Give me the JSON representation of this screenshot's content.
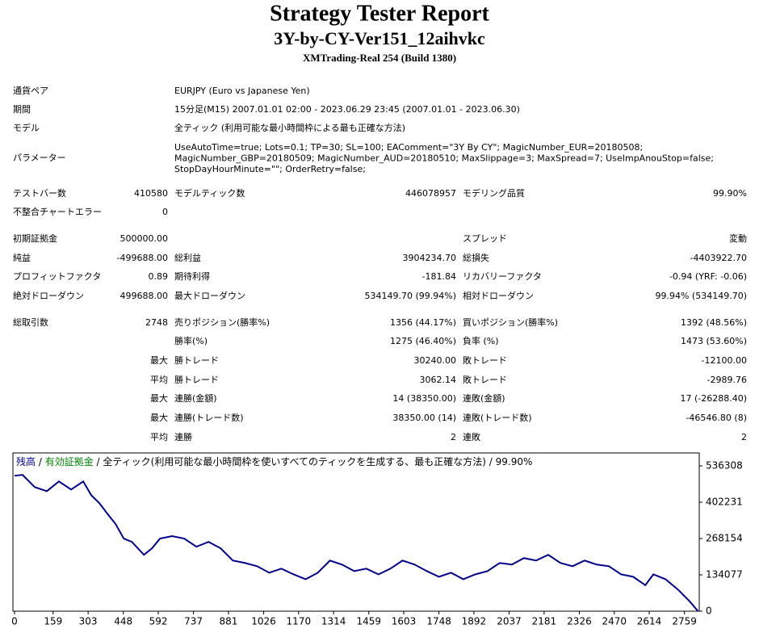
{
  "header": {
    "title": "Strategy Tester Report",
    "subtitle": "3Y-by-CY-Ver151_12aihvkc",
    "server": "XMTrading-Real 254 (Build 1380)"
  },
  "report": [
    [
      "通貨ペア",
      "EURJPY (Euro vs Japanese Yen)"
    ],
    [
      "期間",
      "15分足(M15) 2007.01.01 02:00 - 2023.06.29 23:45 (2007.01.01 - 2023.06.30)"
    ],
    [
      "モデル",
      "全ティック (利用可能な最小時間枠による最も正確な方法)"
    ],
    [
      "パラメーター",
      [
        "UseAutoTime=true; Lots=0.1; TP=30; SL=100; EAComment=\"3Y By CY\"; MagicNumber_EUR=20180508;",
        "MagicNumber_GBP=20180509; MagicNumber_AUD=20180510; MaxSlippage=3; MaxSpread=7; UseImpAnouStop=false;",
        "StopDayHourMinute=\"\"; OrderRetry=false;"
      ]
    ],
    [
      "テストバー数",
      "410580",
      "モデルティック数",
      "446078957",
      "モデリング品質",
      "99.90%"
    ],
    [
      "不整合チャートエラー",
      "0",
      null,
      null,
      null,
      null
    ],
    [
      "初期証拠金",
      "500000.00",
      null,
      null,
      "スプレッド",
      "変動"
    ],
    [
      "純益",
      "-499688.00",
      "総利益",
      "3904234.70",
      "総損失",
      "-4403922.70"
    ],
    [
      "プロフィットファクタ",
      "0.89",
      "期待利得",
      "-181.84",
      "リカバリーファクタ",
      "-0.94 (YRF: -0.06)"
    ],
    [
      "絶対ドローダウン",
      "499688.00",
      "最大ドローダウン",
      "534149.70 (99.94%)",
      "相対ドローダウン",
      "99.94% (534149.70)"
    ],
    [
      "総取引数",
      "2748",
      "売りポジション(勝率%)",
      "1356 (44.17%)",
      "買いポジション(勝率%)",
      "1392 (48.56%)"
    ],
    [
      null,
      null,
      "勝率(%)",
      "1275 (46.40%)",
      "負率 (%)",
      "1473 (53.60%)"
    ],
    [
      null,
      "最大",
      "勝トレード",
      "30240.00",
      "敗トレード",
      "-12100.00"
    ],
    [
      null,
      "平均",
      "勝トレード",
      "3062.14",
      "敗トレード",
      "-2989.76"
    ],
    [
      null,
      "最大",
      "連勝(金額)",
      "14 (38350.00)",
      "連敗(金額)",
      "17 (-26288.40)"
    ],
    [
      null,
      "最大",
      "連勝(トレード数)",
      "38350.00 (14)",
      "連敗(トレード数)",
      "-46546.80 (8)"
    ],
    [
      null,
      "平均",
      "連勝",
      "2",
      "連敗",
      "2"
    ]
  ],
  "chart_data": {
    "type": "line",
    "legend": [
      {
        "text": " / "
      },
      {
        "text": "有効証拠金",
        "color": "#008000"
      },
      {
        "text": " / 全ティック(利用可能な最小時間枠を使いすべてのティックを生成する、最も正確な方法) / 99.90%"
      }
    ],
    "x": [
      0,
      33,
      83,
      133,
      183,
      233,
      283,
      316,
      350,
      383,
      416,
      450,
      483,
      533,
      566,
      599,
      649,
      699,
      749,
      799,
      849,
      899,
      949,
      999,
      1049,
      1099,
      1149,
      1199,
      1249,
      1299,
      1349,
      1399,
      1449,
      1499,
      1548,
      1598,
      1648,
      1698,
      1748,
      1798,
      1848,
      1898,
      1948,
      1998,
      2048,
      2098,
      2148,
      2198,
      2248,
      2298,
      2348,
      2398,
      2448,
      2498,
      2548,
      2598,
      2631,
      2681,
      2731,
      2781,
      2815
    ],
    "series": [
      {
        "name": "残高",
        "color": "#00008b",
        "values": [
          500000,
          503000,
          458000,
          443000,
          479000,
          449000,
          479000,
          428000,
          398000,
          359000,
          322000,
          268000,
          256000,
          208000,
          232000,
          268000,
          277000,
          268000,
          238000,
          256000,
          232000,
          187000,
          178000,
          166000,
          142000,
          157000,
          136000,
          118000,
          142000,
          187000,
          172000,
          148000,
          157000,
          136000,
          157000,
          187000,
          172000,
          148000,
          127000,
          142000,
          118000,
          136000,
          148000,
          178000,
          172000,
          196000,
          187000,
          208000,
          178000,
          166000,
          187000,
          172000,
          166000,
          136000,
          127000,
          96000,
          136000,
          118000,
          81000,
          36000,
          0
        ]
      }
    ],
    "xlim": [
      0,
      2820
    ],
    "ylim": [
      0,
      584000
    ],
    "xticks": [
      0,
      159,
      303,
      448,
      592,
      737,
      881,
      1026,
      1170,
      1314,
      1459,
      1603,
      1748,
      1892,
      2037,
      2181,
      2326,
      2470,
      2614,
      2759
    ],
    "yticks": [
      0,
      134077,
      268154,
      402231,
      536308
    ]
  }
}
